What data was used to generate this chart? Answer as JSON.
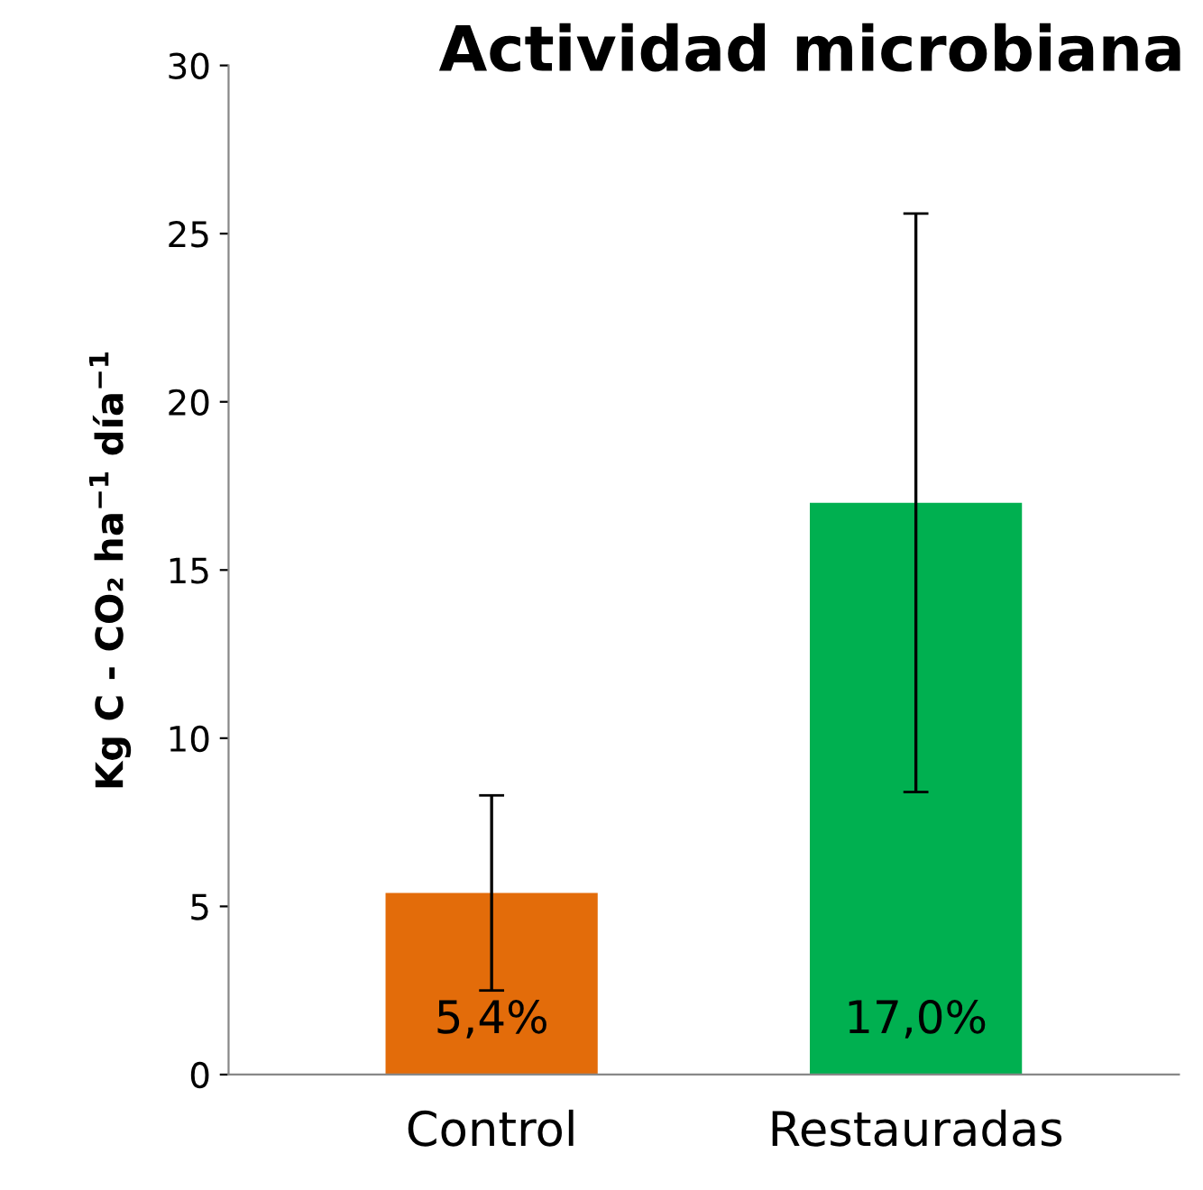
{
  "chart_data": {
    "type": "bar",
    "title": "Actividad microbiana",
    "ylabel": "Kg C - CO₂ ha$^{−1}$ día$^{−1}$",
    "categories": [
      "Control",
      "Restauradas"
    ],
    "values": [
      5.4,
      17.0
    ],
    "colors": [
      "#e36c0a",
      "#00b050"
    ],
    "errors": [
      2.9,
      8.6
    ],
    "value_labels": [
      "5,4%",
      "17,0%"
    ],
    "ylim": [
      0,
      30
    ],
    "yticks": [
      0,
      5,
      10,
      15,
      20,
      25,
      30
    ],
    "grid": false,
    "legend": false
  }
}
